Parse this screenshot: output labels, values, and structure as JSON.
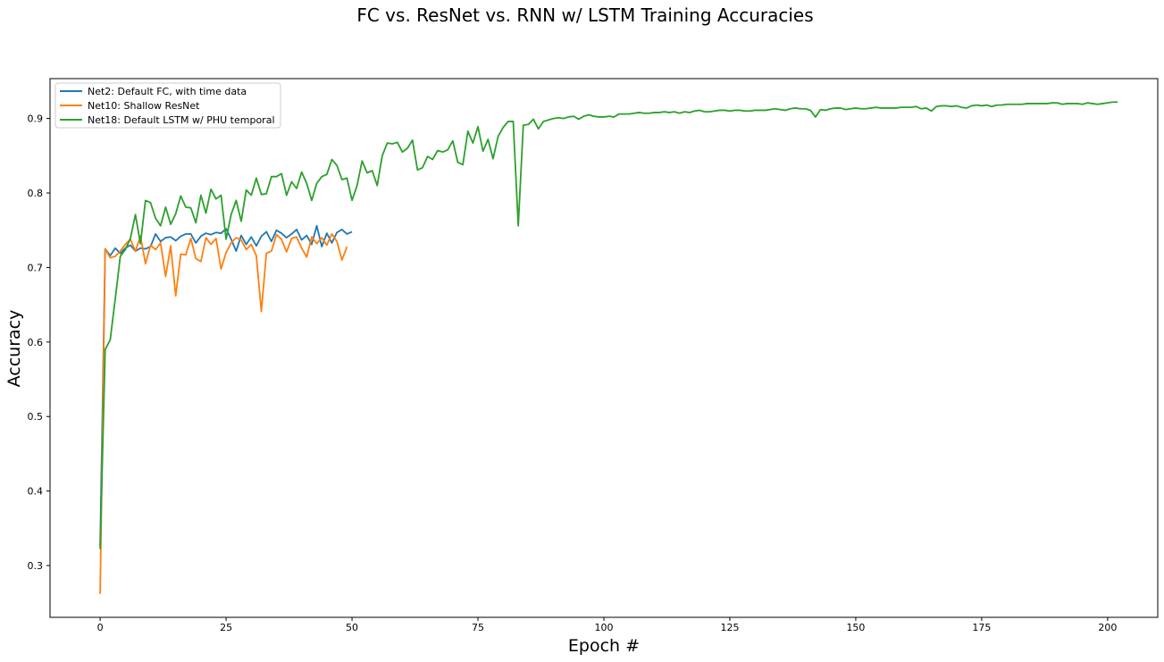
{
  "chart_data": {
    "type": "line",
    "title": "FC vs. ResNet vs. RNN w/ LSTM Training Accuracies",
    "xlabel": "Epoch #",
    "ylabel": "Accuracy",
    "xlim": [
      -9.95,
      209.95
    ],
    "ylim": [
      0.2305,
      0.9535
    ],
    "xticks": [
      0,
      25,
      50,
      75,
      100,
      125,
      150,
      175,
      200
    ],
    "yticks": [
      0.3,
      0.4,
      0.5,
      0.6,
      0.7,
      0.8,
      0.9
    ],
    "xtick_labels": [
      "0",
      "25",
      "50",
      "75",
      "100",
      "125",
      "150",
      "175",
      "200"
    ],
    "ytick_labels": [
      "0.3",
      "0.4",
      "0.5",
      "0.6",
      "0.7",
      "0.8",
      "0.9"
    ],
    "grid": false,
    "legend_position": "upper-left",
    "series": [
      {
        "name": "Net2: Default FC, with time data",
        "color": "#1f77b4",
        "x_start": 0,
        "values": [
          0.326,
          0.725,
          0.716,
          0.726,
          0.719,
          0.726,
          0.73,
          0.722,
          0.726,
          0.725,
          0.728,
          0.745,
          0.735,
          0.74,
          0.741,
          0.736,
          0.742,
          0.745,
          0.745,
          0.733,
          0.742,
          0.746,
          0.744,
          0.747,
          0.746,
          0.752,
          0.738,
          0.722,
          0.743,
          0.731,
          0.741,
          0.729,
          0.742,
          0.748,
          0.735,
          0.75,
          0.746,
          0.74,
          0.745,
          0.751,
          0.737,
          0.743,
          0.731,
          0.756,
          0.728,
          0.746,
          0.733,
          0.747,
          0.751,
          0.745,
          0.748
        ]
      },
      {
        "name": "Net10: Shallow ResNet",
        "color": "#ff7f0e",
        "x_start": 0,
        "values": [
          0.262,
          0.725,
          0.713,
          0.715,
          0.722,
          0.731,
          0.738,
          0.722,
          0.742,
          0.705,
          0.73,
          0.724,
          0.733,
          0.688,
          0.729,
          0.662,
          0.718,
          0.717,
          0.739,
          0.712,
          0.708,
          0.74,
          0.731,
          0.739,
          0.698,
          0.72,
          0.733,
          0.74,
          0.737,
          0.724,
          0.731,
          0.716,
          0.641,
          0.719,
          0.722,
          0.744,
          0.738,
          0.721,
          0.739,
          0.741,
          0.726,
          0.714,
          0.741,
          0.732,
          0.74,
          0.73,
          0.745,
          0.735,
          0.71,
          0.728
        ]
      },
      {
        "name": "Net18: Default LSTM w/ PHU temporal",
        "color": "#2ca02c",
        "x_start": 0,
        "values": [
          0.322,
          0.59,
          0.603,
          0.658,
          0.715,
          0.724,
          0.739,
          0.771,
          0.732,
          0.79,
          0.787,
          0.766,
          0.756,
          0.781,
          0.758,
          0.772,
          0.796,
          0.781,
          0.78,
          0.76,
          0.797,
          0.773,
          0.805,
          0.792,
          0.797,
          0.738,
          0.771,
          0.79,
          0.762,
          0.804,
          0.797,
          0.82,
          0.798,
          0.799,
          0.822,
          0.822,
          0.826,
          0.797,
          0.815,
          0.806,
          0.828,
          0.813,
          0.79,
          0.813,
          0.822,
          0.825,
          0.845,
          0.837,
          0.818,
          0.82,
          0.79,
          0.81,
          0.843,
          0.827,
          0.83,
          0.81,
          0.85,
          0.867,
          0.866,
          0.868,
          0.855,
          0.86,
          0.871,
          0.831,
          0.834,
          0.849,
          0.845,
          0.857,
          0.855,
          0.858,
          0.87,
          0.841,
          0.838,
          0.883,
          0.867,
          0.889,
          0.856,
          0.872,
          0.846,
          0.876,
          0.888,
          0.896,
          0.896,
          0.756,
          0.891,
          0.892,
          0.899,
          0.886,
          0.896,
          0.898,
          0.9,
          0.901,
          0.9,
          0.902,
          0.903,
          0.899,
          0.903,
          0.905,
          0.903,
          0.902,
          0.902,
          0.903,
          0.902,
          0.906,
          0.906,
          0.906,
          0.907,
          0.908,
          0.907,
          0.907,
          0.908,
          0.908,
          0.909,
          0.908,
          0.909,
          0.907,
          0.909,
          0.908,
          0.91,
          0.911,
          0.909,
          0.909,
          0.91,
          0.911,
          0.911,
          0.91,
          0.911,
          0.911,
          0.91,
          0.91,
          0.911,
          0.911,
          0.911,
          0.912,
          0.913,
          0.912,
          0.911,
          0.913,
          0.914,
          0.913,
          0.913,
          0.911,
          0.902,
          0.912,
          0.911,
          0.913,
          0.914,
          0.914,
          0.912,
          0.913,
          0.914,
          0.913,
          0.913,
          0.914,
          0.915,
          0.914,
          0.914,
          0.914,
          0.914,
          0.915,
          0.915,
          0.915,
          0.916,
          0.913,
          0.914,
          0.91,
          0.916,
          0.917,
          0.917,
          0.916,
          0.917,
          0.915,
          0.914,
          0.917,
          0.918,
          0.917,
          0.918,
          0.916,
          0.918,
          0.918,
          0.919,
          0.919,
          0.919,
          0.919,
          0.92,
          0.92,
          0.92,
          0.92,
          0.92,
          0.921,
          0.921,
          0.919,
          0.92,
          0.92,
          0.92,
          0.919,
          0.921,
          0.92,
          0.919,
          0.92,
          0.921,
          0.922,
          0.922
        ]
      }
    ]
  }
}
